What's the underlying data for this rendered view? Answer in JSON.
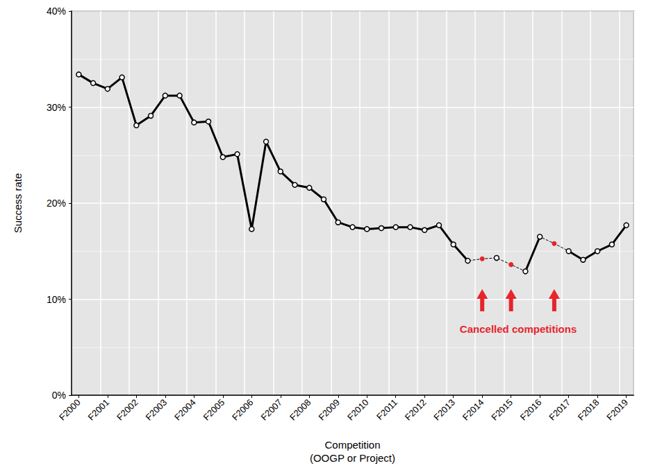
{
  "chart_data": {
    "type": "line",
    "x_label": "Competition\n(OOGP or Project)",
    "y_label": "Success rate",
    "categories": [
      "F2000",
      null,
      "F2001",
      null,
      "F2002",
      null,
      "F2003",
      null,
      "F2004",
      null,
      "F2005",
      null,
      "F2006",
      null,
      "F2007",
      null,
      "F2008",
      null,
      "F2009",
      null,
      "F2010",
      null,
      "F2011",
      null,
      "F2012",
      null,
      "F2013",
      null,
      "F2014",
      null,
      "F2015",
      null,
      "F2016",
      null,
      "F2017",
      null,
      "F2018",
      null,
      "F2019"
    ],
    "values": [
      33.4,
      32.5,
      31.9,
      33.1,
      28.1,
      29.1,
      31.2,
      31.2,
      28.4,
      28.5,
      24.8,
      25.1,
      17.3,
      26.4,
      23.3,
      21.9,
      21.6,
      20.4,
      18.0,
      17.5,
      17.3,
      17.4,
      17.5,
      17.5,
      17.2,
      17.7,
      15.7,
      14.0,
      14.2,
      14.3,
      13.6,
      12.9,
      16.5,
      15.8,
      15.0,
      14.1,
      15.0,
      15.7,
      17.7
    ],
    "color": "#000000",
    "marker": "circle",
    "line_style": "solid",
    "ylim": [
      0,
      40
    ],
    "yticks": [
      {
        "value": 0,
        "label": "0%"
      },
      {
        "value": 10,
        "label": "10%"
      },
      {
        "value": 20,
        "label": "20%"
      },
      {
        "value": 30,
        "label": "30%"
      },
      {
        "value": 40,
        "label": "40%"
      }
    ],
    "grid": true,
    "annotation": {
      "text": "Cancelled competitions",
      "color": "#e8242b",
      "cancelled": [
        false,
        false,
        false,
        false,
        false,
        false,
        false,
        false,
        false,
        false,
        false,
        false,
        false,
        false,
        false,
        false,
        false,
        false,
        false,
        false,
        false,
        false,
        false,
        false,
        false,
        false,
        false,
        false,
        true,
        false,
        true,
        false,
        false,
        true,
        false,
        false,
        false,
        false,
        false
      ]
    }
  }
}
